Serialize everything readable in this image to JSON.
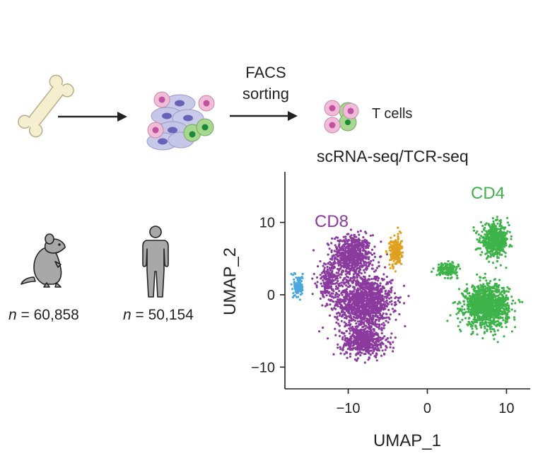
{
  "workflow": {
    "facs_label_line1": "FACS",
    "facs_label_line2": "sorting",
    "tcells_label": "T cells",
    "assay_label": "scRNA-seq/TCR-seq"
  },
  "species": {
    "mouse": {
      "n_prefix": "n",
      "n_value": "= 60,858"
    },
    "human": {
      "n_prefix": "n",
      "n_value": "= 50,154"
    }
  },
  "colors": {
    "cd8": "#8b3a9e",
    "cd4": "#3db34a",
    "orange_cluster": "#e0a020",
    "blue_cluster": "#4aa8dc",
    "axis": "#222222"
  },
  "chart_data": {
    "type": "scatter",
    "xlabel": "UMAP_1",
    "ylabel": "UMAP_2",
    "xlim": [
      -18,
      13
    ],
    "ylim": [
      -13,
      17
    ],
    "xticks": [
      -10,
      0,
      10
    ],
    "yticks": [
      -10,
      0,
      10
    ],
    "series": [
      {
        "name": "CD8",
        "color": "#8b3a9e",
        "clusters": [
          {
            "center": [
              -9.5,
              5.5
            ],
            "spread": [
              2.2,
              2.5
            ],
            "n": 650
          },
          {
            "center": [
              -8,
              -1
            ],
            "spread": [
              3.2,
              3.5
            ],
            "n": 1300
          },
          {
            "center": [
              -8,
              -6.5
            ],
            "spread": [
              2.6,
              1.8
            ],
            "n": 500
          },
          {
            "center": [
              -12.5,
              2
            ],
            "spread": [
              1.2,
              2.0
            ],
            "n": 200
          }
        ]
      },
      {
        "name": "CD4",
        "color": "#3db34a",
        "clusters": [
          {
            "center": [
              8.5,
              7.5
            ],
            "spread": [
              1.6,
              2.0
            ],
            "n": 550
          },
          {
            "center": [
              7.5,
              -1.5
            ],
            "spread": [
              2.5,
              2.6
            ],
            "n": 1200
          },
          {
            "center": [
              2.5,
              3.5
            ],
            "spread": [
              1.2,
              0.8
            ],
            "n": 160
          }
        ]
      },
      {
        "name": "",
        "color": "#e0a020",
        "clusters": [
          {
            "center": [
              -4,
              6
            ],
            "spread": [
              0.7,
              1.8
            ],
            "n": 220
          }
        ]
      },
      {
        "name": "",
        "color": "#4aa8dc",
        "clusters": [
          {
            "center": [
              -16.3,
              1.2
            ],
            "spread": [
              0.5,
              1.4
            ],
            "n": 140
          }
        ]
      }
    ],
    "annotations": [
      "CD8",
      "CD4"
    ]
  }
}
